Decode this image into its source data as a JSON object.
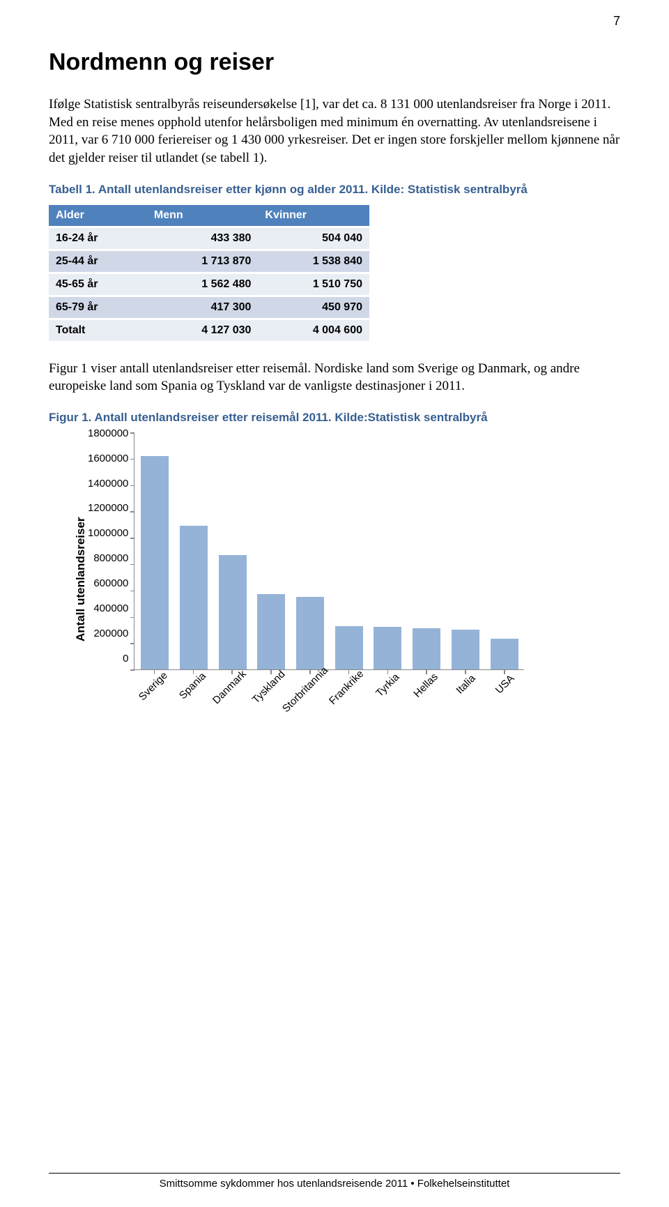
{
  "page_number": "7",
  "title": "Nordmenn og reiser",
  "paragraph1": "Ifølge Statistisk sentralbyrås reiseundersøkelse [1], var det ca. 8 131 000 utenlandsreiser fra Norge i 2011. Med en reise menes opphold utenfor helårsboligen med minimum én overnatting. Av utenlandsreisene i 2011, var 6 710 000 feriereiser og 1 430 000 yrkesreiser. Det er ingen store forskjeller mellom kjønnene når det gjelder reiser til utlandet (se tabell 1).",
  "table_caption": "Tabell 1. Antall utenlandsreiser etter kjønn og alder 2011. Kilde: Statistisk sentralbyrå",
  "table": {
    "headers": [
      "Alder",
      "Menn",
      "Kvinner"
    ],
    "rows": [
      [
        "16-24 år",
        "433 380",
        "504 040"
      ],
      [
        "25-44 år",
        "1 713 870",
        "1 538 840"
      ],
      [
        "45-65 år",
        "1 562 480",
        "1 510 750"
      ],
      [
        "65-79 år",
        "417 300",
        "450 970"
      ],
      [
        "Totalt",
        "4 127 030",
        "4 004 600"
      ]
    ],
    "header_bg": "#4f81bd",
    "header_fg": "#ffffff",
    "row_odd_bg": "#e9edf4",
    "row_even_bg": "#d0d8e8"
  },
  "paragraph2": "Figur 1 viser antall utenlandsreiser etter reisemål. Nordiske land som Sverige og Danmark, og andre europeiske land som Spania og Tyskland var de vanligste destinasjoner i 2011.",
  "figure_caption": "Figur 1. Antall utenlandsreiser etter reisemål 2011. Kilde:Statistisk sentralbyrå",
  "chart": {
    "type": "bar",
    "y_label": "Antall utenlandsreiser",
    "ylim": [
      0,
      1800000
    ],
    "ytick_step": 200000,
    "y_ticks": [
      "1800000",
      "1600000",
      "1400000",
      "1200000",
      "1000000",
      "800000",
      "600000",
      "400000",
      "200000",
      "0"
    ],
    "categories": [
      "Sverige",
      "Spania",
      "Danmark",
      "Tyskland",
      "Storbritannia",
      "Frankrike",
      "Tyrkia",
      "Hellas",
      "Italia",
      "USA"
    ],
    "values": [
      1620000,
      1090000,
      870000,
      570000,
      550000,
      330000,
      320000,
      310000,
      300000,
      230000
    ],
    "bar_color": "#95b3d7",
    "axis_color": "#888888",
    "background_color": "#ffffff",
    "label_fontsize": 15,
    "ylabel_fontsize": 17
  },
  "footer": "Smittsomme sykdommer hos utenlandsreisende 2011 • Folkehelseinstituttet"
}
